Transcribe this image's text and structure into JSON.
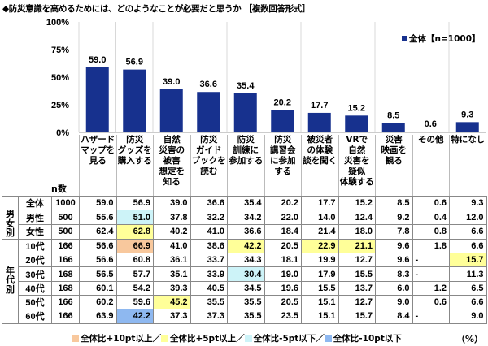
{
  "title": "◆防災意識を高めるためには、どのようなことが必要だと思うか ［複数回答形式］",
  "colors": {
    "bar": "#17318e",
    "plus10": "#f8c89d",
    "plus5": "#ffff99",
    "minus5": "#cdf3f8",
    "minus10": "#8eb8f0"
  },
  "chart_data": {
    "type": "bar",
    "categories": [
      "ハザード\nマップを\n見る",
      "防災\nグッズを\n購入する",
      "自然\n災害の\n被害\n想定を\n知る",
      "防災\nガイド\nブックを\n読む",
      "防災\n訓練に\n参加する",
      "防災\n講習会\nに参加\nする",
      "被災者\nの体験\n談を聞く",
      "VRで\n自然\n災害を\n疑似\n体験する",
      "災害\n映画を\n観る",
      "その他",
      "特になし"
    ],
    "series": [
      {
        "name": "全体【n=1000】",
        "values": [
          59.0,
          56.9,
          39.0,
          36.6,
          35.4,
          20.2,
          17.7,
          15.2,
          8.5,
          0.6,
          9.3
        ]
      }
    ],
    "ylim": [
      0,
      100
    ],
    "yticks": [
      "0%",
      "25%",
      "50%",
      "75%",
      "100%"
    ],
    "legend": "top-right"
  },
  "table": {
    "n_header": "n数",
    "groups": [
      "男女別",
      "年代別"
    ],
    "rows": [
      {
        "label": "全体",
        "n": "1000",
        "values": [
          "59.0",
          "56.9",
          "39.0",
          "36.6",
          "35.4",
          "20.2",
          "17.7",
          "15.2",
          "8.5",
          "0.6",
          "9.3"
        ],
        "hl": [
          "",
          "",
          "",
          "",
          "",
          "",
          "",
          "",
          "",
          "",
          ""
        ]
      },
      {
        "label": "男性",
        "n": "500",
        "values": [
          "55.6",
          "51.0",
          "37.8",
          "32.2",
          "34.2",
          "22.0",
          "14.0",
          "12.4",
          "9.2",
          "0.4",
          "12.0"
        ],
        "hl": [
          "",
          "minus5",
          "",
          "",
          "",
          "",
          "",
          "",
          "",
          "",
          ""
        ]
      },
      {
        "label": "女性",
        "n": "500",
        "values": [
          "62.4",
          "62.8",
          "40.2",
          "41.0",
          "36.6",
          "18.4",
          "21.4",
          "18.0",
          "7.8",
          "0.8",
          "6.6"
        ],
        "hl": [
          "",
          "plus5",
          "",
          "",
          "",
          "",
          "",
          "",
          "",
          "",
          ""
        ]
      },
      {
        "label": "10代",
        "n": "166",
        "values": [
          "56.6",
          "66.9",
          "41.0",
          "38.6",
          "42.2",
          "20.5",
          "22.9",
          "21.1",
          "9.6",
          "1.8",
          "6.6"
        ],
        "hl": [
          "",
          "plus10",
          "",
          "",
          "plus5",
          "",
          "plus5",
          "plus5",
          "",
          "",
          ""
        ]
      },
      {
        "label": "20代",
        "n": "166",
        "values": [
          "56.6",
          "60.8",
          "36.1",
          "33.7",
          "34.3",
          "18.1",
          "19.9",
          "12.7",
          "9.6",
          "-",
          "15.7"
        ],
        "hl": [
          "",
          "",
          "",
          "",
          "",
          "",
          "",
          "",
          "",
          "",
          "plus5"
        ]
      },
      {
        "label": "30代",
        "n": "168",
        "values": [
          "56.5",
          "57.7",
          "35.1",
          "33.9",
          "30.4",
          "19.0",
          "17.9",
          "15.5",
          "8.3",
          "-",
          "11.3"
        ],
        "hl": [
          "",
          "",
          "",
          "",
          "minus5",
          "",
          "",
          "",
          "",
          "",
          ""
        ]
      },
      {
        "label": "40代",
        "n": "168",
        "values": [
          "60.1",
          "54.2",
          "39.3",
          "40.5",
          "34.5",
          "19.6",
          "15.5",
          "13.7",
          "6.0",
          "1.2",
          "6.5"
        ],
        "hl": [
          "",
          "",
          "",
          "",
          "",
          "",
          "",
          "",
          "",
          "",
          ""
        ]
      },
      {
        "label": "50代",
        "n": "166",
        "values": [
          "60.2",
          "59.6",
          "45.2",
          "35.5",
          "35.5",
          "20.5",
          "15.1",
          "12.7",
          "9.0",
          "0.6",
          "6.6"
        ],
        "hl": [
          "",
          "",
          "plus5",
          "",
          "",
          "",
          "",
          "",
          "",
          "",
          ""
        ]
      },
      {
        "label": "60代",
        "n": "166",
        "values": [
          "63.9",
          "42.2",
          "37.3",
          "37.3",
          "35.5",
          "23.5",
          "15.1",
          "15.7",
          "8.4",
          "-",
          "9.0"
        ],
        "hl": [
          "",
          "minus10",
          "",
          "",
          "",
          "",
          "",
          "",
          "",
          "",
          ""
        ]
      }
    ]
  },
  "legend": {
    "plus10": "全体比+10pt以上／",
    "plus5": "全体比+5pt以上／",
    "minus5": "全体比-5pt以下／",
    "minus10": "全体比-10pt以下"
  },
  "unit": "（%）"
}
